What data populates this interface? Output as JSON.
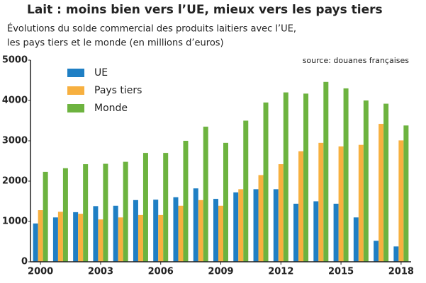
{
  "chart_data": {
    "type": "bar",
    "title": "Lait : moins bien vers l’UE, mieux vers les pays tiers",
    "subtitle": [
      "Évolutions du solde commercial des produits laitiers avec l’UE,",
      "les pays tiers et le monde (en millions d’euros)"
    ],
    "annotation": "source: douanes françaises",
    "categories": [
      "2000",
      null,
      null,
      "2003",
      null,
      null,
      "2006",
      null,
      null,
      "2009",
      null,
      null,
      "2012",
      null,
      null,
      "2015",
      null,
      null,
      "2018"
    ],
    "series": [
      {
        "name": "UE",
        "color": "#1f7fc4",
        "values": [
          950,
          1100,
          1230,
          1380,
          1390,
          1530,
          1540,
          1600,
          1820,
          1560,
          1720,
          1800,
          1800,
          1440,
          1500,
          1440,
          1100,
          520,
          380
        ]
      },
      {
        "name": "Pays tiers",
        "color": "#f7b040",
        "values": [
          1280,
          1240,
          1190,
          1050,
          1100,
          1160,
          1160,
          1390,
          1530,
          1390,
          1800,
          2150,
          2420,
          2740,
          2950,
          2860,
          2900,
          3420,
          3010
        ]
      },
      {
        "name": "Monde",
        "color": "#6db33f",
        "values": [
          2230,
          2320,
          2420,
          2430,
          2480,
          2700,
          2700,
          3000,
          3350,
          2950,
          3500,
          3950,
          4200,
          4170,
          4460,
          4300,
          4000,
          3920,
          3380
        ]
      }
    ],
    "ylim": [
      0,
      5000
    ],
    "yticks": [
      0,
      1000,
      2000,
      3000,
      4000,
      5000
    ],
    "grid": false,
    "legend": "top-left"
  }
}
